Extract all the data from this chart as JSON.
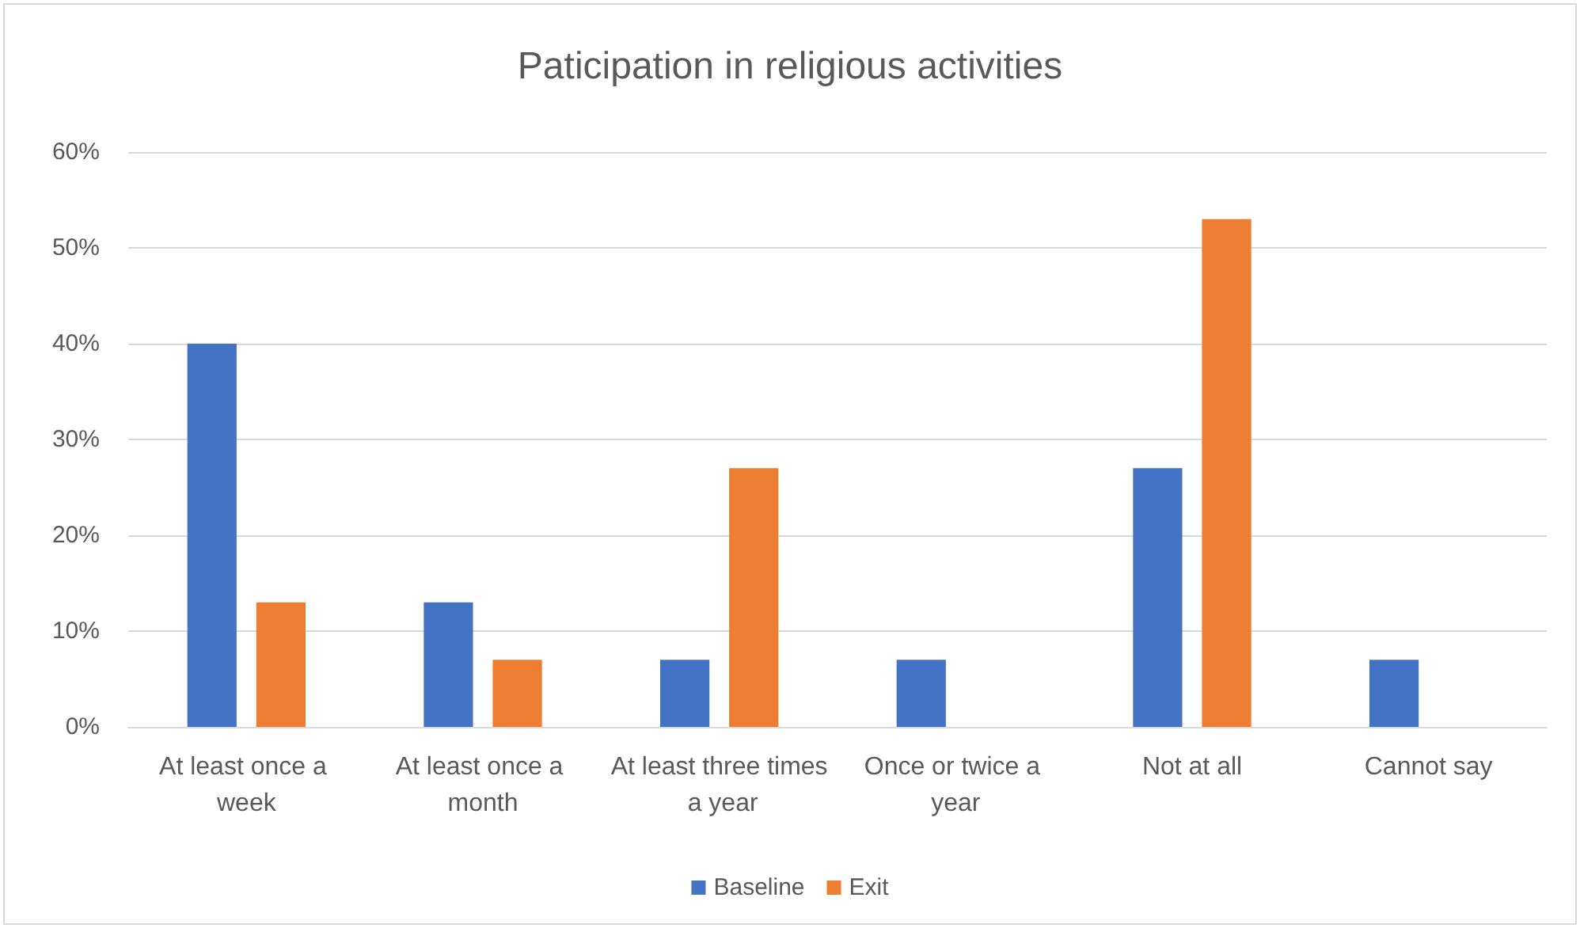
{
  "chart_data": {
    "type": "bar",
    "title": "Paticipation in religious activities",
    "categories": [
      "At least once a week",
      "At least once a month",
      "At least three times a year",
      "Once or twice a year",
      "Not at all",
      "Cannot say"
    ],
    "series": [
      {
        "name": "Baseline",
        "color": "#4472c4",
        "values": [
          40,
          13,
          7,
          7,
          27,
          7
        ]
      },
      {
        "name": "Exit",
        "color": "#ed7d31",
        "values": [
          13,
          7,
          27,
          0,
          53,
          0
        ]
      }
    ],
    "ylim": [
      0,
      60
    ],
    "yticks": [
      {
        "value": 0,
        "label": "0%"
      },
      {
        "value": 10,
        "label": "10%"
      },
      {
        "value": 20,
        "label": "20%"
      },
      {
        "value": 30,
        "label": "30%"
      },
      {
        "value": 40,
        "label": "40%"
      },
      {
        "value": 50,
        "label": "50%"
      },
      {
        "value": 60,
        "label": "60%"
      }
    ],
    "grid": "y",
    "legend": "bottom"
  }
}
